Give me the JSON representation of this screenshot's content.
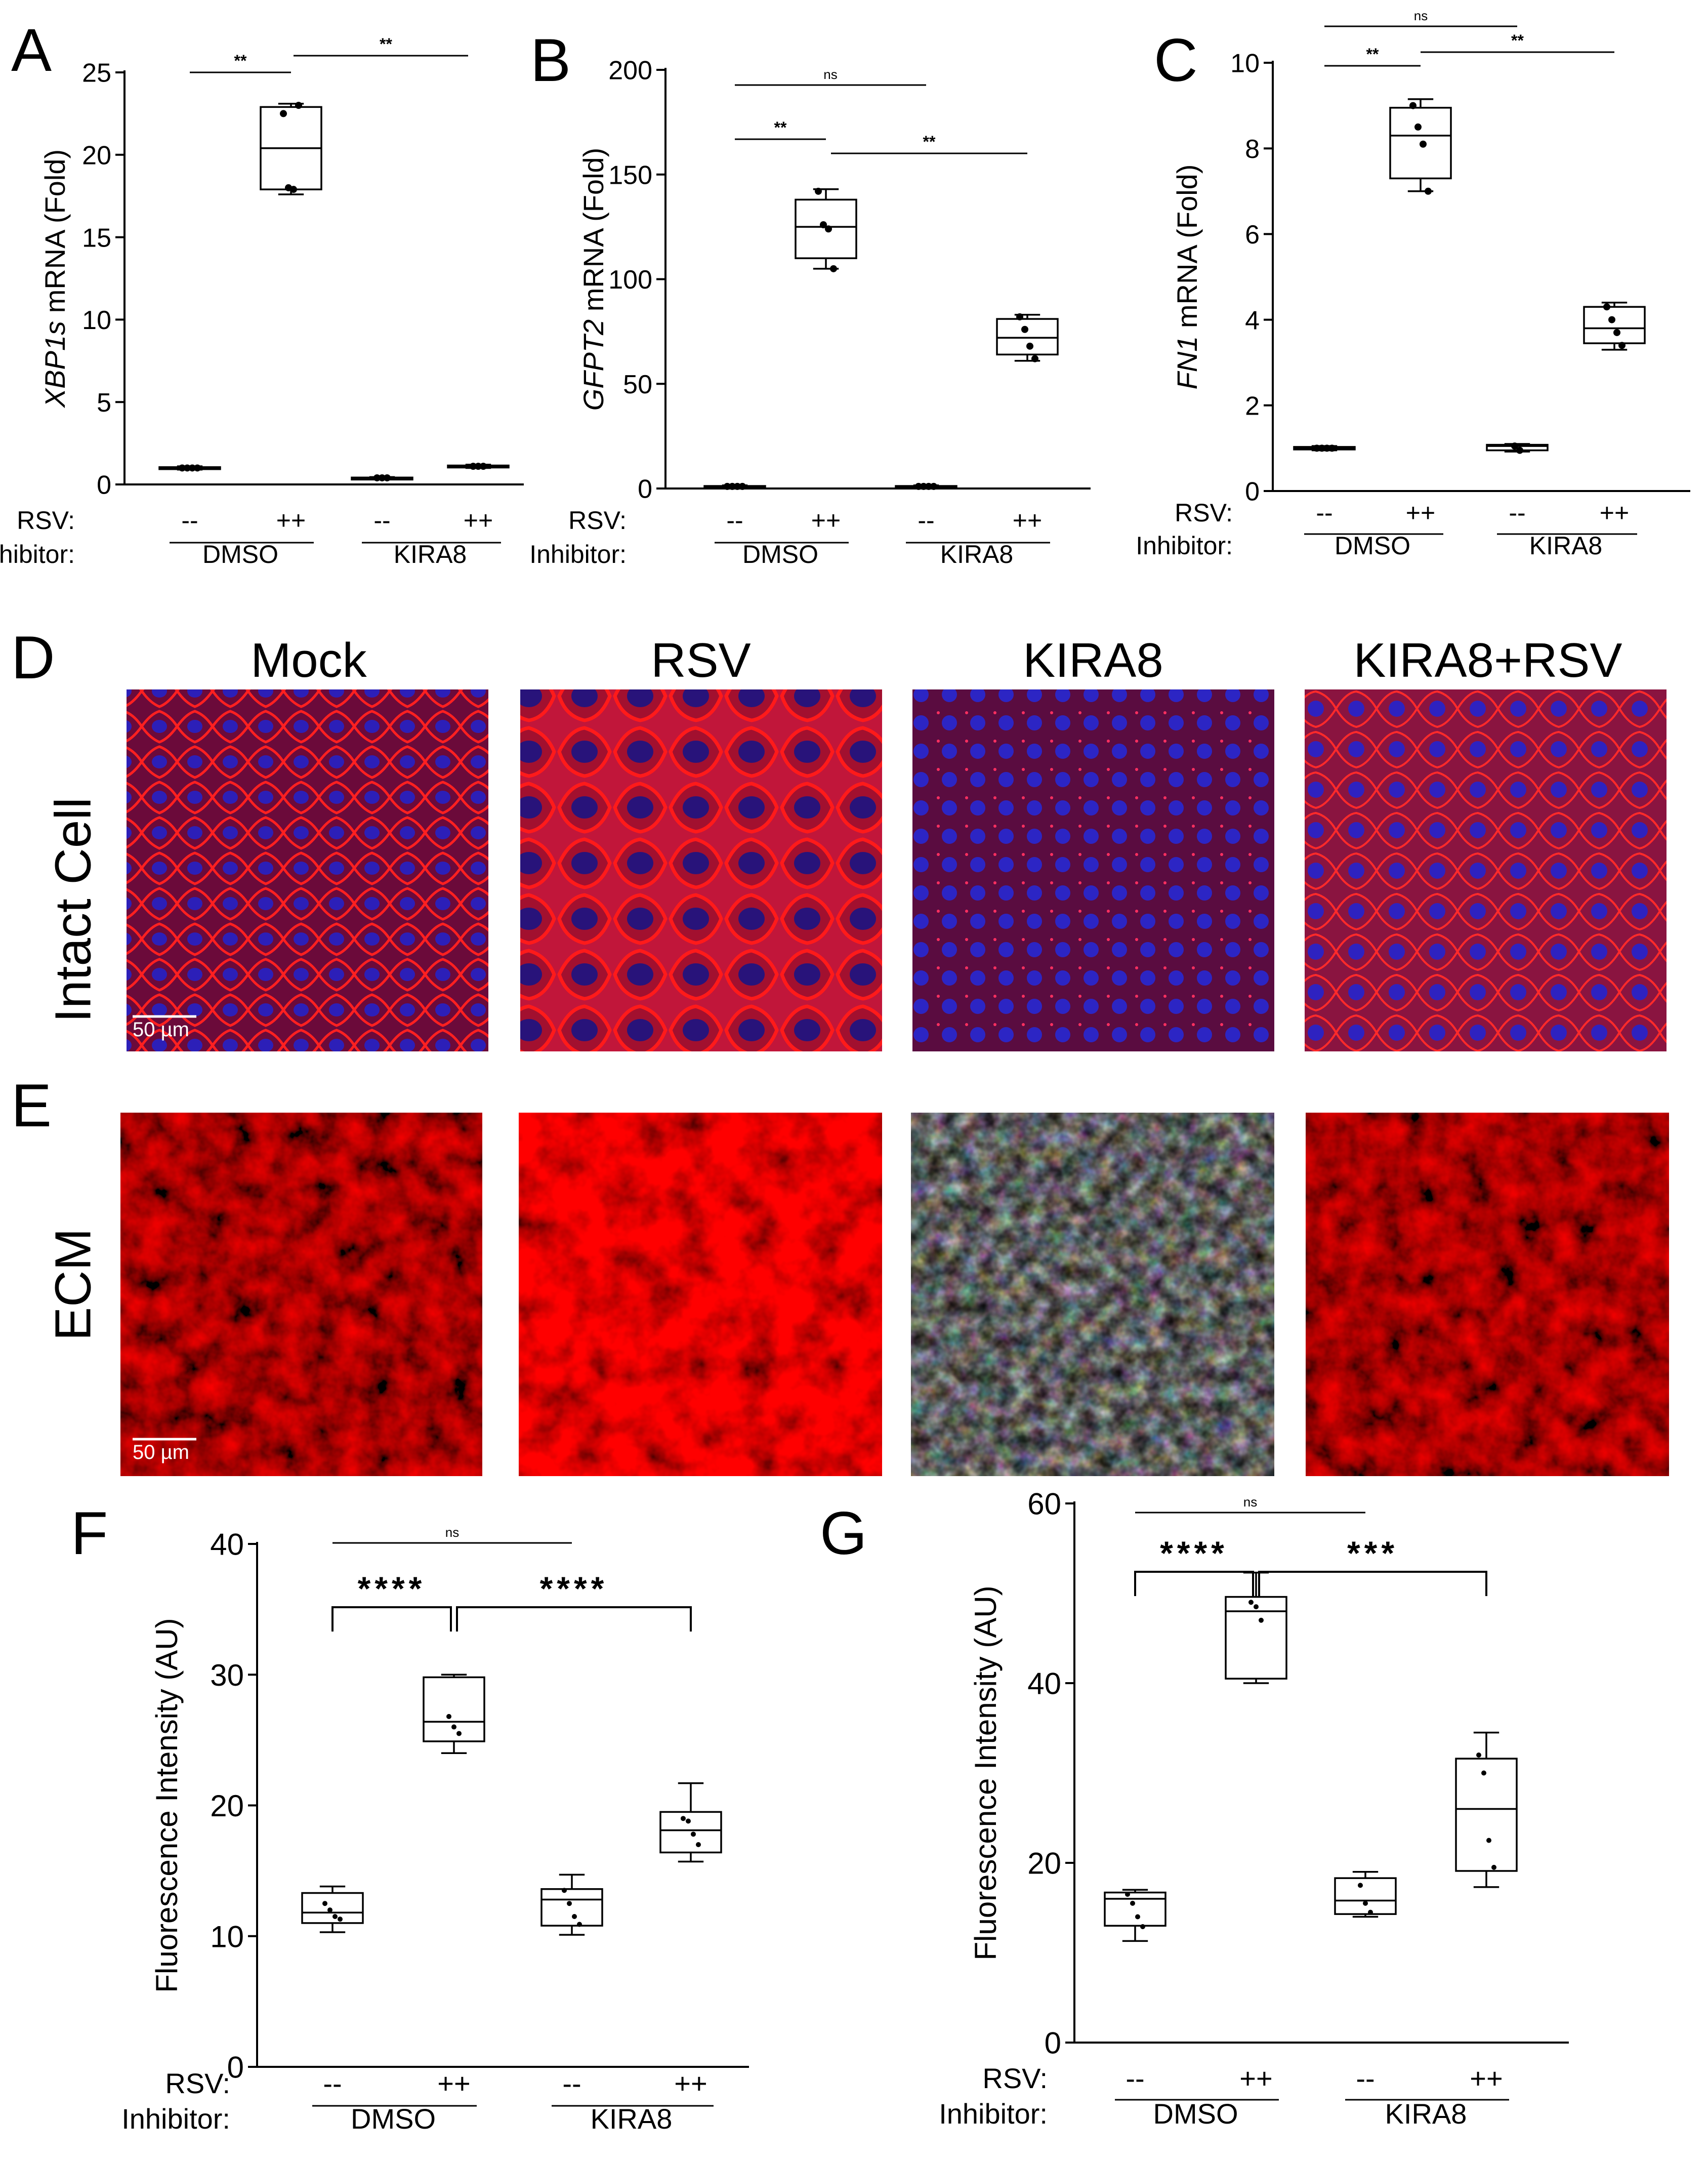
{
  "panels": {
    "A": "A",
    "B": "B",
    "C": "C",
    "D": "D",
    "E": "E",
    "F": "F",
    "G": "G"
  },
  "group_labels": {
    "rsv_label": "RSV:",
    "inhibitor_label": "Inhibitor:",
    "minus": "--",
    "plus": "++",
    "dmso": "DMSO",
    "kira8": "KIRA8"
  },
  "microscopy": {
    "columns": [
      "Mock",
      "RSV",
      "KIRA8",
      "KIRA8+RSV"
    ],
    "rows": [
      "Intact Cell",
      "ECM"
    ],
    "scale_bar": "50 µm"
  },
  "chart_data": [
    {
      "panel": "A",
      "type": "box",
      "ylabel_italic": "XBP1s",
      "ylabel_rest": " mRNA (Fold)",
      "ylim": [
        0,
        25
      ],
      "yticks": [
        0,
        5,
        10,
        15,
        20,
        25
      ],
      "categories": [
        "DMSO --",
        "DMSO ++",
        "KIRA8 --",
        "KIRA8 ++"
      ],
      "boxes": [
        {
          "min": 0.9,
          "q1": 0.95,
          "median": 1.0,
          "q3": 1.05,
          "max": 1.1,
          "points": [
            1.0,
            1.0,
            1.0,
            1.0
          ]
        },
        {
          "min": 17.6,
          "q1": 17.9,
          "median": 20.4,
          "q3": 22.9,
          "max": 23.1,
          "points": [
            22.5,
            18.0,
            17.9,
            23.0
          ]
        },
        {
          "min": 0.35,
          "q1": 0.38,
          "median": 0.4,
          "q3": 0.42,
          "max": 0.45,
          "points": [
            0.4,
            0.4,
            0.4
          ]
        },
        {
          "min": 1.0,
          "q1": 1.05,
          "median": 1.1,
          "q3": 1.15,
          "max": 1.2,
          "points": [
            1.1,
            1.1,
            1.1
          ]
        }
      ],
      "significance": [
        {
          "from": 0,
          "to": 1,
          "label": "**",
          "style": "line"
        },
        {
          "from": 1,
          "to": 3,
          "label": "**",
          "style": "line"
        }
      ]
    },
    {
      "panel": "B",
      "type": "box",
      "ylabel_italic": "GFPT2",
      "ylabel_rest": " mRNA (Fold)",
      "ylim": [
        0,
        200
      ],
      "yticks": [
        0,
        50,
        100,
        150,
        200
      ],
      "categories": [
        "DMSO --",
        "DMSO ++",
        "KIRA8 --",
        "KIRA8 ++"
      ],
      "boxes": [
        {
          "min": 0.5,
          "q1": 0.8,
          "median": 1.0,
          "q3": 1.2,
          "max": 1.5,
          "points": [
            1,
            1,
            1,
            1
          ]
        },
        {
          "min": 105,
          "q1": 110,
          "median": 125,
          "q3": 138,
          "max": 143,
          "points": [
            142,
            126,
            124,
            105
          ]
        },
        {
          "min": 0.5,
          "q1": 0.8,
          "median": 1.0,
          "q3": 1.2,
          "max": 1.5,
          "points": [
            1,
            1,
            1,
            1
          ]
        },
        {
          "min": 61,
          "q1": 64,
          "median": 72,
          "q3": 81,
          "max": 83,
          "points": [
            82,
            76,
            68,
            62
          ]
        }
      ],
      "significance": [
        {
          "from": 0,
          "to": 2,
          "label": "ns",
          "style": "line"
        },
        {
          "from": 0,
          "to": 1,
          "label": "**",
          "style": "line"
        },
        {
          "from": 1,
          "to": 3,
          "label": "**",
          "style": "line"
        }
      ]
    },
    {
      "panel": "C",
      "type": "box",
      "ylabel_italic": "FN1",
      "ylabel_rest": " mRNA (Fold)",
      "ylim": [
        0,
        10
      ],
      "yticks": [
        0,
        2,
        4,
        6,
        8,
        10
      ],
      "ytick_labels": [
        "0",
        "2",
        "4",
        "6",
        "8",
        "10"
      ],
      "categories": [
        "DMSO --",
        "DMSO ++",
        "KIRA8 --",
        "KIRA8 ++"
      ],
      "boxes": [
        {
          "min": 0.95,
          "q1": 0.97,
          "median": 1.0,
          "q3": 1.03,
          "max": 1.05,
          "points": [
            1,
            1,
            1,
            1
          ]
        },
        {
          "min": 7.0,
          "q1": 7.3,
          "median": 8.3,
          "q3": 8.95,
          "max": 9.15,
          "points": [
            9.0,
            8.5,
            8.1,
            7.0
          ]
        },
        {
          "min": 0.92,
          "q1": 0.95,
          "median": 1.05,
          "q3": 1.08,
          "max": 1.1,
          "points": [
            1.05,
            0.95
          ]
        },
        {
          "min": 3.3,
          "q1": 3.45,
          "median": 3.8,
          "q3": 4.3,
          "max": 4.4,
          "points": [
            4.3,
            4.0,
            3.7,
            3.4
          ]
        }
      ],
      "significance": [
        {
          "from": 0,
          "to": 2,
          "label": "ns",
          "style": "line"
        },
        {
          "from": 0,
          "to": 1,
          "label": "**",
          "style": "line"
        },
        {
          "from": 1,
          "to": 3,
          "label": "**",
          "style": "line"
        }
      ]
    },
    {
      "panel": "F",
      "type": "box",
      "ylabel": "Fluorescence Intensity (AU)",
      "ylim": [
        0,
        40
      ],
      "yticks": [
        0,
        10,
        20,
        30,
        40
      ],
      "categories": [
        "DMSO --",
        "DMSO ++",
        "KIRA8 --",
        "KIRA8 ++"
      ],
      "boxes": [
        {
          "min": 10.3,
          "q1": 11.0,
          "median": 11.8,
          "q3": 13.3,
          "max": 13.8,
          "points": [
            12.5,
            12.0,
            11.5,
            11.3
          ]
        },
        {
          "min": 24.0,
          "q1": 24.9,
          "median": 26.4,
          "q3": 29.8,
          "max": 30.0,
          "points": [
            26.8,
            26.0,
            25.5
          ]
        },
        {
          "min": 10.1,
          "q1": 10.8,
          "median": 12.8,
          "q3": 13.6,
          "max": 14.7,
          "points": [
            13.5,
            12.5,
            11.5,
            10.9
          ]
        },
        {
          "min": 15.7,
          "q1": 16.4,
          "median": 18.1,
          "q3": 19.5,
          "max": 21.7,
          "points": [
            19.0,
            18.8,
            17.8,
            17.0
          ]
        }
      ],
      "significance": [
        {
          "from": 0,
          "to": 2,
          "label": "ns",
          "style": "line"
        },
        {
          "from": 0,
          "to": 1,
          "label": "****",
          "style": "bracket"
        },
        {
          "from": 1,
          "to": 3,
          "label": "****",
          "style": "bracket"
        }
      ]
    },
    {
      "panel": "G",
      "type": "box",
      "ylabel": "Fluorescence Intensity (AU)",
      "ylim": [
        0,
        60
      ],
      "yticks": [
        0,
        20,
        40,
        60
      ],
      "categories": [
        "DMSO --",
        "DMSO ++",
        "KIRA8 --",
        "KIRA8 ++"
      ],
      "boxes": [
        {
          "min": 11.3,
          "q1": 13.0,
          "median": 16.0,
          "q3": 16.7,
          "max": 17.0,
          "points": [
            16.5,
            15.5,
            14.0,
            12.9
          ]
        },
        {
          "min": 40.0,
          "q1": 40.5,
          "median": 48.0,
          "q3": 49.6,
          "max": 52.3,
          "points": [
            49.0,
            48.5,
            47.0
          ]
        },
        {
          "min": 14.0,
          "q1": 14.3,
          "median": 15.8,
          "q3": 18.3,
          "max": 19.0,
          "points": [
            17.5,
            15.5,
            14.5
          ]
        },
        {
          "min": 17.3,
          "q1": 19.1,
          "median": 26.0,
          "q3": 31.6,
          "max": 34.5,
          "points": [
            32.0,
            30.0,
            22.5,
            19.5
          ]
        }
      ],
      "significance": [
        {
          "from": 0,
          "to": 2,
          "label": "ns",
          "style": "line"
        },
        {
          "from": 0,
          "to": 1,
          "label": "****",
          "style": "bracket"
        },
        {
          "from": 1,
          "to": 3,
          "label": "***",
          "style": "bracket"
        }
      ]
    }
  ]
}
